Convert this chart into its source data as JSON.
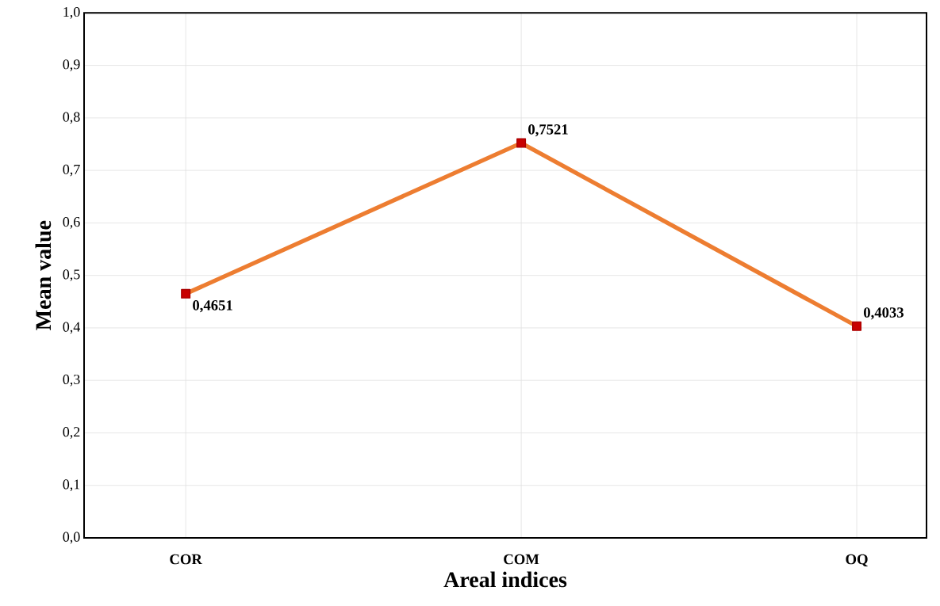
{
  "chart_data": {
    "type": "line",
    "xlabel": "Areal indices",
    "ylabel": "Mean value",
    "categories": [
      "COR",
      "COM",
      "OQ"
    ],
    "series": [
      {
        "color": "#ed7d31",
        "values": [
          0.4651,
          0.7521,
          0.4033
        ],
        "value_labels": [
          "0,4651",
          "0,7521",
          "0,4033"
        ]
      }
    ],
    "ylim": [
      0,
      1
    ],
    "yticks": [
      {
        "value": 0,
        "label": "0,0"
      },
      {
        "value": 0.1,
        "label": "0,1"
      },
      {
        "value": 0.2,
        "label": "0,2"
      },
      {
        "value": 0.3,
        "label": "0,3"
      },
      {
        "value": 0.4,
        "label": "0,4"
      },
      {
        "value": 0.5,
        "label": "0,5"
      },
      {
        "value": 0.6,
        "label": "0,6"
      },
      {
        "value": 0.7,
        "label": "0,7"
      },
      {
        "value": 0.8,
        "label": "0,8"
      },
      {
        "value": 0.9,
        "label": "0,9"
      },
      {
        "value": 1,
        "label": "1,0"
      }
    ],
    "grid": true,
    "marker": "square",
    "line_style": "solid"
  }
}
